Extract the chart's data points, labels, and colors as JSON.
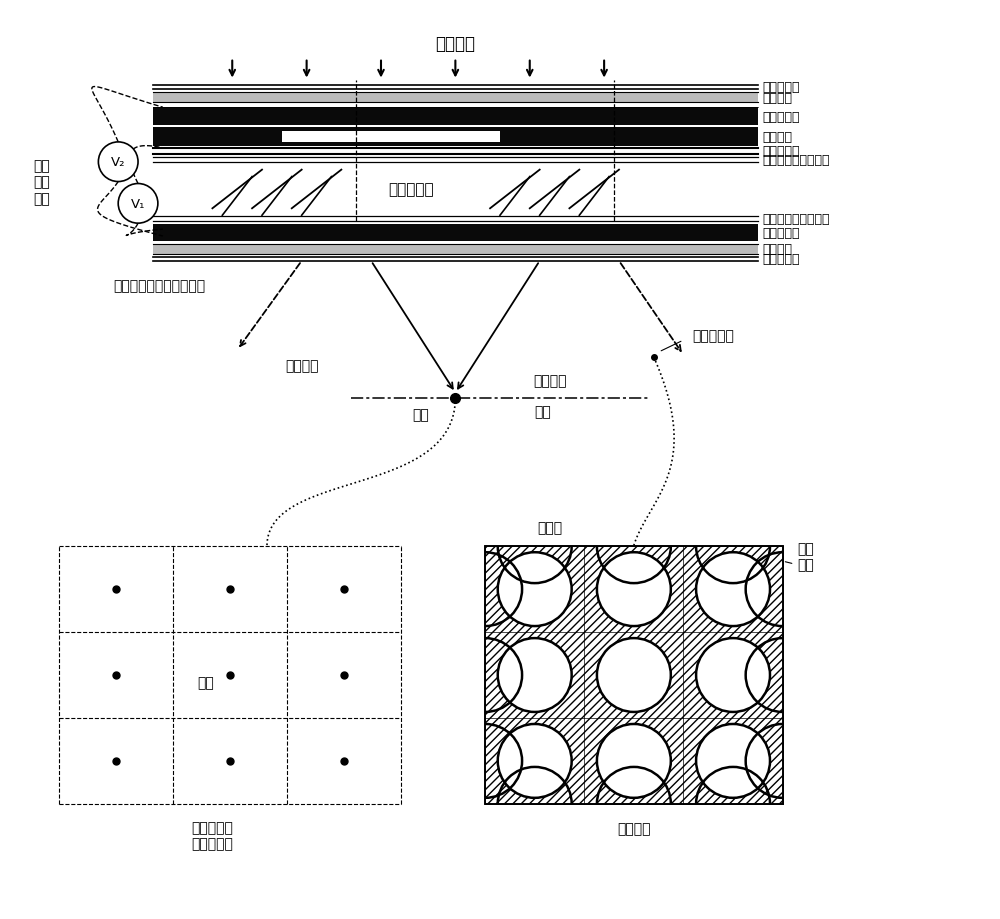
{
  "bg_color": "#ffffff",
  "layer_labels": [
    "第一增透膜",
    "第一基片",
    "第二电极层",
    "电绝缘层",
    "第一电极层",
    "第一液晶初始取向层",
    "第二液晶初始取向层",
    "公共电极层",
    "第二基片",
    "第二增透膜"
  ],
  "incident_text": "入射光束",
  "lc_text": "液晶材料层",
  "voltage_text": "驱控\n电压\n信号",
  "unit_lens_text": "单元电控液晶双模微透镜",
  "diverge_text": "光束发散",
  "converge_text": "光束汇聚",
  "focal_spot_text": "焦斑",
  "focal_plane_text": "焦面",
  "micro_diffuse_text": "微发散光环",
  "focal_spots_label": "焦斑",
  "unit_area_label": "单元微透镜\n光作用区域",
  "diffuse_field_label": "发散光场",
  "micro_aperture_label": "微光孔",
  "micro_ring_label": "微圆\n光环",
  "V1_label": "V₁",
  "V2_label": "V₂"
}
